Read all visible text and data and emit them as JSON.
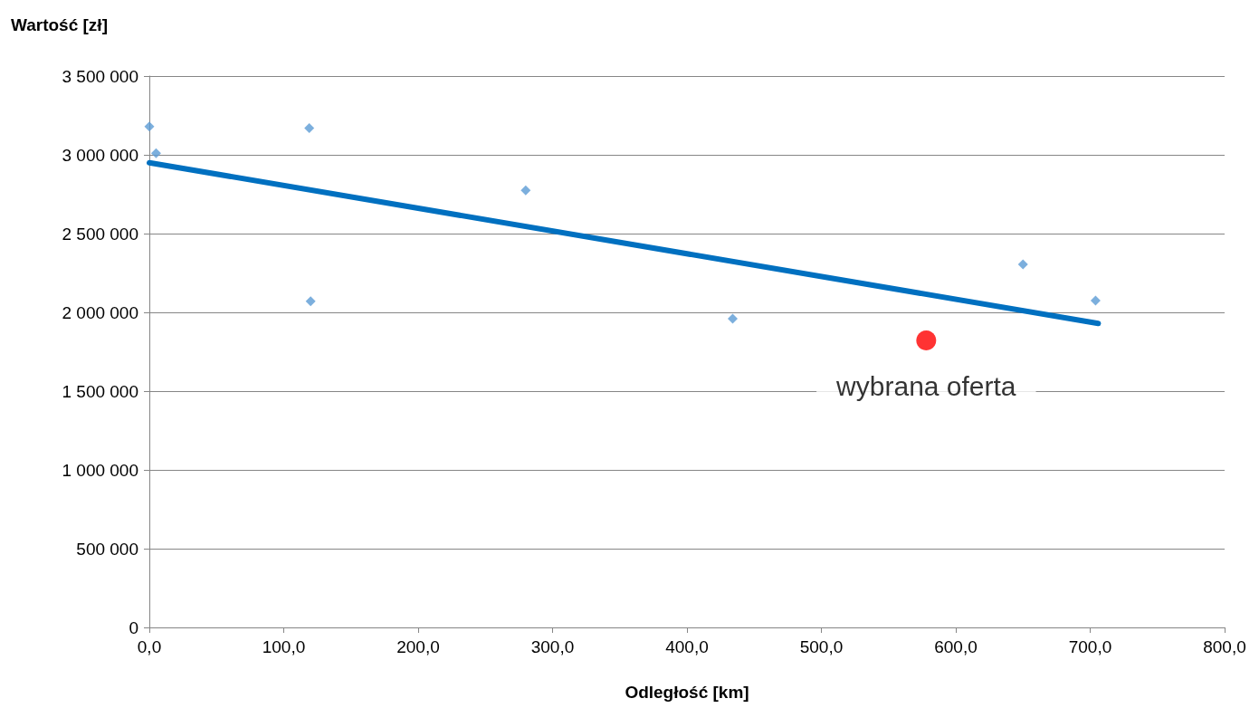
{
  "chart_data": {
    "type": "scatter",
    "xlabel": "Odległość [km]",
    "ylabel": "Wartość [zł]",
    "xlim": [
      0,
      800
    ],
    "xticks": [
      {
        "value": 0,
        "label": "0,0"
      },
      {
        "value": 100,
        "label": "100,0"
      },
      {
        "value": 200,
        "label": "200,0"
      },
      {
        "value": 300,
        "label": "300,0"
      },
      {
        "value": 400,
        "label": "400,0"
      },
      {
        "value": 500,
        "label": "500,0"
      },
      {
        "value": 600,
        "label": "600,0"
      },
      {
        "value": 700,
        "label": "700,0"
      },
      {
        "value": 800,
        "label": "800,0"
      }
    ],
    "ylim": [
      0,
      3500000
    ],
    "yticks": [
      0,
      {
        "value": 500000,
        "label": "500 000"
      },
      {
        "value": 1000000,
        "label": "1 000 000"
      },
      {
        "value": 1500000,
        "label": "1 500 000"
      },
      {
        "value": 2000000,
        "label": "2 000 000"
      },
      {
        "value": 2500000,
        "label": "2 500 000"
      },
      {
        "value": 3000000,
        "label": "3 000 000"
      },
      {
        "value": 3500000,
        "label": "3 500 000"
      }
    ],
    "grid": "y",
    "marker": "diamond",
    "series": [
      {
        "color": "#5b9bd5",
        "x": [
          0,
          5,
          119,
          120,
          280,
          434,
          650,
          704
        ],
        "values": [
          3180000,
          3010000,
          3170000,
          2070000,
          2775000,
          1960000,
          2305000,
          2075000
        ]
      },
      {
        "type": "line",
        "color": "#0070c0",
        "marker": "none",
        "x": [
          0,
          706
        ],
        "values": [
          2950000,
          1930000
        ]
      },
      {
        "color": "#ff0000",
        "marker": "circle",
        "x": [
          578
        ],
        "values": [
          1822000
        ]
      }
    ],
    "annotations": [
      {
        "text": "wybrana oferta",
        "x": 578,
        "y": 1822000
      }
    ]
  }
}
